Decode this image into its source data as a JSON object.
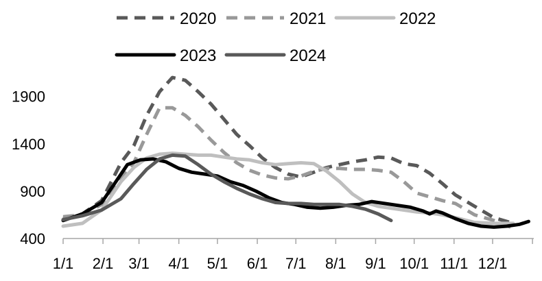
{
  "chart_data": {
    "type": "line",
    "title": "",
    "xlabel": "",
    "ylabel": "",
    "ylim": [
      400,
      2050
    ],
    "y_ticks": [
      400,
      900,
      1400,
      1900
    ],
    "x_tick_labels": [
      "1/1",
      "2/1",
      "3/1",
      "4/1",
      "5/1",
      "6/1",
      "7/1",
      "8/1",
      "9/1",
      "10/1",
      "11/1",
      "12/1"
    ],
    "grid": false,
    "legend": "top",
    "series": [
      {
        "name": "2020",
        "color": "#595959",
        "dash": "dashed",
        "points": [
          [
            0,
            610
          ],
          [
            15,
            660
          ],
          [
            30,
            800
          ],
          [
            45,
            1200
          ],
          [
            55,
            1380
          ],
          [
            65,
            1700
          ],
          [
            75,
            1950
          ],
          [
            85,
            2100
          ],
          [
            95,
            2070
          ],
          [
            105,
            1950
          ],
          [
            115,
            1820
          ],
          [
            125,
            1660
          ],
          [
            135,
            1500
          ],
          [
            145,
            1380
          ],
          [
            155,
            1250
          ],
          [
            165,
            1150
          ],
          [
            175,
            1080
          ],
          [
            185,
            1050
          ],
          [
            195,
            1100
          ],
          [
            205,
            1150
          ],
          [
            215,
            1180
          ],
          [
            225,
            1210
          ],
          [
            235,
            1230
          ],
          [
            245,
            1260
          ],
          [
            255,
            1250
          ],
          [
            265,
            1190
          ],
          [
            275,
            1170
          ],
          [
            285,
            1090
          ],
          [
            295,
            980
          ],
          [
            305,
            860
          ],
          [
            320,
            740
          ],
          [
            335,
            620
          ],
          [
            350,
            560
          ]
        ]
      },
      {
        "name": "2021",
        "color": "#999999",
        "dash": "dashed",
        "points": [
          [
            0,
            630
          ],
          [
            15,
            650
          ],
          [
            30,
            760
          ],
          [
            45,
            1050
          ],
          [
            55,
            1200
          ],
          [
            65,
            1500
          ],
          [
            75,
            1780
          ],
          [
            85,
            1780
          ],
          [
            95,
            1700
          ],
          [
            105,
            1580
          ],
          [
            115,
            1440
          ],
          [
            125,
            1310
          ],
          [
            135,
            1200
          ],
          [
            145,
            1120
          ],
          [
            155,
            1070
          ],
          [
            165,
            1040
          ],
          [
            175,
            1030
          ],
          [
            185,
            1060
          ],
          [
            195,
            1110
          ],
          [
            205,
            1140
          ],
          [
            215,
            1140
          ],
          [
            225,
            1130
          ],
          [
            235,
            1130
          ],
          [
            245,
            1120
          ],
          [
            255,
            1100
          ],
          [
            265,
            1000
          ],
          [
            275,
            880
          ],
          [
            285,
            840
          ],
          [
            295,
            800
          ],
          [
            305,
            770
          ],
          [
            320,
            650
          ],
          [
            335,
            590
          ],
          [
            348,
            520
          ]
        ]
      },
      {
        "name": "2022",
        "color": "#bfbfbf",
        "dash": "solid",
        "points": [
          [
            0,
            530
          ],
          [
            15,
            560
          ],
          [
            30,
            700
          ],
          [
            45,
            1000
          ],
          [
            55,
            1150
          ],
          [
            65,
            1250
          ],
          [
            75,
            1290
          ],
          [
            85,
            1300
          ],
          [
            95,
            1290
          ],
          [
            105,
            1280
          ],
          [
            115,
            1280
          ],
          [
            125,
            1260
          ],
          [
            135,
            1240
          ],
          [
            145,
            1230
          ],
          [
            155,
            1200
          ],
          [
            165,
            1180
          ],
          [
            175,
            1190
          ],
          [
            185,
            1200
          ],
          [
            195,
            1190
          ],
          [
            205,
            1110
          ],
          [
            215,
            1000
          ],
          [
            225,
            870
          ],
          [
            235,
            780
          ],
          [
            245,
            740
          ],
          [
            255,
            720
          ],
          [
            265,
            700
          ],
          [
            275,
            680
          ],
          [
            285,
            670
          ],
          [
            295,
            650
          ],
          [
            305,
            620
          ],
          [
            320,
            570
          ],
          [
            335,
            560
          ],
          [
            350,
            560
          ]
        ]
      },
      {
        "name": "2023",
        "color": "#000000",
        "dash": "solid",
        "points": [
          [
            0,
            590
          ],
          [
            15,
            660
          ],
          [
            30,
            780
          ],
          [
            40,
            980
          ],
          [
            50,
            1180
          ],
          [
            60,
            1230
          ],
          [
            70,
            1240
          ],
          [
            80,
            1210
          ],
          [
            90,
            1140
          ],
          [
            100,
            1100
          ],
          [
            110,
            1080
          ],
          [
            120,
            1060
          ],
          [
            130,
            1000
          ],
          [
            140,
            960
          ],
          [
            150,
            900
          ],
          [
            160,
            830
          ],
          [
            170,
            780
          ],
          [
            180,
            760
          ],
          [
            190,
            730
          ],
          [
            200,
            720
          ],
          [
            210,
            730
          ],
          [
            220,
            750
          ],
          [
            230,
            760
          ],
          [
            240,
            790
          ],
          [
            250,
            770
          ],
          [
            260,
            750
          ],
          [
            270,
            730
          ],
          [
            280,
            690
          ],
          [
            285,
            660
          ],
          [
            290,
            690
          ],
          [
            295,
            670
          ],
          [
            305,
            610
          ],
          [
            315,
            560
          ],
          [
            325,
            530
          ],
          [
            335,
            520
          ],
          [
            345,
            530
          ],
          [
            355,
            550
          ],
          [
            362,
            580
          ]
        ]
      },
      {
        "name": "2024",
        "color": "#595959",
        "dash": "solid",
        "points": [
          [
            0,
            600
          ],
          [
            15,
            640
          ],
          [
            30,
            700
          ],
          [
            45,
            820
          ],
          [
            55,
            980
          ],
          [
            65,
            1130
          ],
          [
            75,
            1240
          ],
          [
            85,
            1280
          ],
          [
            95,
            1270
          ],
          [
            105,
            1180
          ],
          [
            115,
            1080
          ],
          [
            125,
            1000
          ],
          [
            135,
            930
          ],
          [
            145,
            870
          ],
          [
            155,
            820
          ],
          [
            165,
            780
          ],
          [
            175,
            770
          ],
          [
            185,
            770
          ],
          [
            195,
            760
          ],
          [
            205,
            760
          ],
          [
            215,
            760
          ],
          [
            225,
            740
          ],
          [
            235,
            710
          ],
          [
            245,
            660
          ],
          [
            255,
            590
          ]
        ]
      }
    ]
  }
}
